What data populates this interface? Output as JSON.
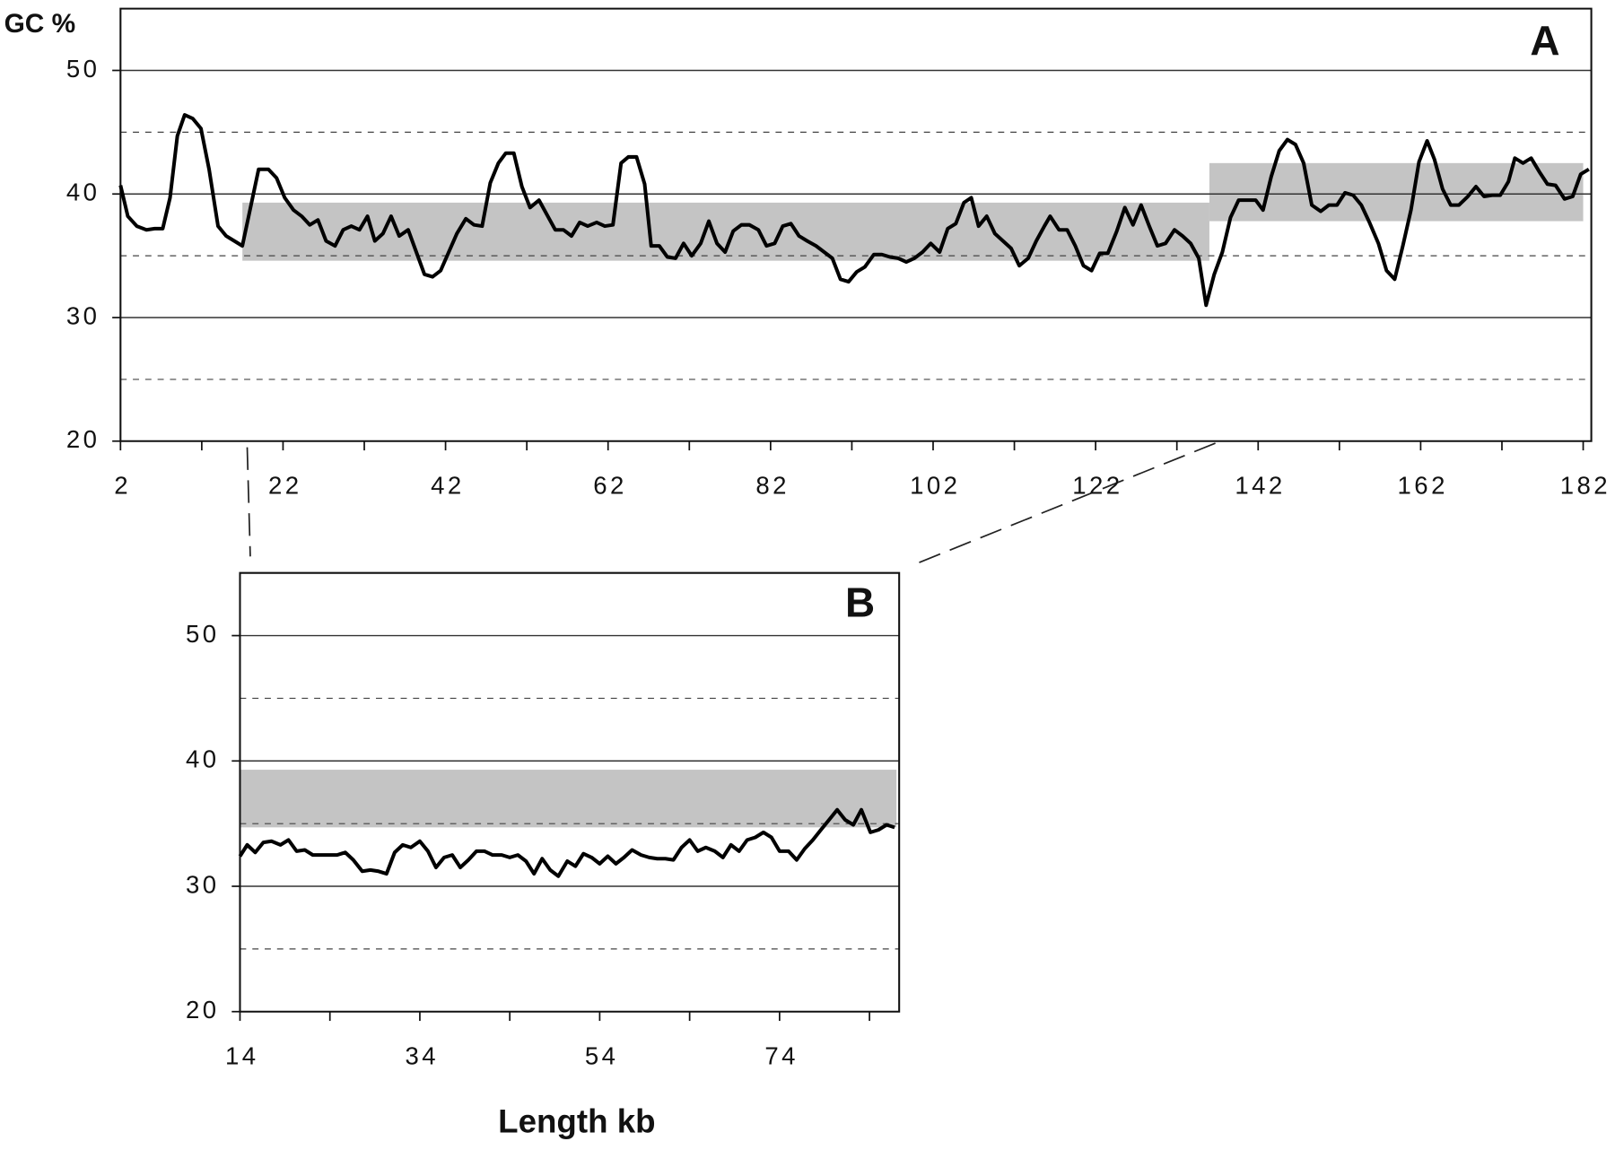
{
  "chart_data": [
    {
      "type": "line",
      "title": "A",
      "y_label": "GC %",
      "color": "#000000",
      "band_color": "#c4c4c4",
      "xlim": [
        2,
        183
      ],
      "xticks": [
        2,
        22,
        42,
        62,
        82,
        102,
        122,
        142,
        162,
        182
      ],
      "minor_xticks": [
        12,
        32,
        52,
        72,
        92,
        112,
        132,
        152,
        172
      ],
      "ylim": [
        20,
        55
      ],
      "yticks": [
        20,
        30,
        40,
        50
      ],
      "minor_grid": [
        25,
        35,
        45
      ],
      "grid": true,
      "bands": [
        {
          "x": [
            17,
            136
          ],
          "y": [
            34.6,
            39.3
          ]
        },
        {
          "x": [
            136,
            182
          ],
          "y": [
            37.8,
            42.5
          ]
        }
      ],
      "x": [
        2,
        2.9,
        4,
        5.2,
        6.2,
        7.2,
        8.1,
        9,
        9.9,
        10.9,
        11.9,
        12.9,
        14,
        15,
        16,
        17,
        18,
        19,
        20.2,
        21.2,
        22.2,
        23.3,
        24.3,
        25.3,
        26.3,
        27.3,
        28.4,
        29.4,
        30.4,
        31.4,
        32.4,
        33.3,
        34.3,
        35.3,
        36.3,
        37.4,
        38.4,
        39.4,
        40.4,
        41.4,
        42.4,
        43.4,
        44.5,
        45.5,
        46.5,
        47.5,
        48.5,
        49.4,
        50.4,
        51.4,
        52.4,
        53.5,
        54.5,
        55.5,
        56.5,
        57.5,
        58.5,
        59.5,
        60.6,
        61.6,
        62.6,
        63.6,
        64.5,
        65.5,
        66.5,
        67.3,
        68.3,
        69.3,
        70.3,
        71.3,
        72.3,
        73.4,
        74.4,
        75.4,
        76.4,
        77.4,
        78.4,
        79.4,
        80.5,
        81.5,
        82.5,
        83.5,
        84.5,
        85.5,
        86.5,
        87.6,
        88.6,
        89.6,
        90.6,
        91.6,
        92.6,
        93.6,
        94.7,
        95.7,
        96.7,
        97.7,
        98.7,
        99.7,
        100.7,
        101.7,
        102.8,
        103.8,
        104.8,
        105.8,
        106.7,
        107.6,
        108.6,
        109.6,
        110.6,
        111.6,
        112.6,
        113.7,
        114.7,
        115.7,
        116.4,
        117.5,
        118.5,
        119.5,
        120.5,
        121.5,
        122.5,
        123.5,
        124.6,
        125.6,
        126.6,
        127.6,
        128.6,
        129.6,
        130.6,
        131.7,
        132.7,
        133.7,
        134.7,
        135.6,
        136.6,
        137.6,
        138.6,
        139.6,
        140.7,
        141.7,
        142.6,
        143.6,
        144.6,
        145.6,
        146.6,
        147.6,
        148.6,
        149.7,
        150.7,
        151.7,
        152.7,
        153.7,
        154.7,
        155.7,
        156.8,
        157.8,
        158.8,
        159.8,
        160.8,
        161.8,
        162.8,
        163.7,
        164.7,
        165.7,
        166.7,
        167.8,
        168.8,
        169.8,
        170.8,
        171.8,
        172.8,
        173.6,
        174.6,
        175.6,
        176.6,
        177.6,
        178.6,
        179.7,
        180.7,
        181.7,
        182.7
      ],
      "values": [
        40.7,
        38.2,
        37.4,
        37.1,
        37.2,
        37.2,
        39.7,
        44.7,
        46.4,
        46.1,
        45.3,
        42.0,
        37.4,
        36.6,
        36.2,
        35.8,
        38.9,
        42.0,
        42.0,
        41.3,
        39.7,
        38.7,
        38.2,
        37.5,
        37.9,
        36.2,
        35.8,
        37.1,
        37.4,
        37.1,
        38.2,
        36.2,
        36.8,
        38.2,
        36.6,
        37.1,
        35.3,
        33.5,
        33.3,
        33.8,
        35.3,
        36.8,
        38.0,
        37.5,
        37.4,
        40.9,
        42.5,
        43.3,
        43.3,
        40.6,
        38.9,
        39.5,
        38.3,
        37.1,
        37.1,
        36.6,
        37.7,
        37.4,
        37.7,
        37.4,
        37.5,
        42.5,
        43.0,
        43.0,
        40.8,
        35.8,
        35.8,
        34.9,
        34.8,
        36.0,
        35.0,
        36.0,
        37.8,
        36.0,
        35.3,
        37.0,
        37.5,
        37.5,
        37.1,
        35.8,
        36.0,
        37.4,
        37.6,
        36.6,
        36.2,
        35.8,
        35.3,
        34.8,
        33.1,
        32.9,
        33.7,
        34.1,
        35.1,
        35.1,
        34.9,
        34.8,
        34.5,
        34.8,
        35.3,
        36.0,
        35.3,
        37.2,
        37.6,
        39.3,
        39.7,
        37.4,
        38.2,
        36.8,
        36.2,
        35.6,
        34.2,
        34.8,
        36.2,
        37.4,
        38.2,
        37.1,
        37.1,
        35.8,
        34.2,
        33.8,
        35.2,
        35.2,
        37.0,
        38.9,
        37.5,
        39.1,
        37.4,
        35.8,
        36.0,
        37.1,
        36.6,
        36.0,
        34.8,
        31.0,
        33.5,
        35.3,
        38.1,
        39.5,
        39.5,
        39.5,
        38.7,
        41.4,
        43.5,
        44.4,
        44.0,
        42.5,
        39.1,
        38.6,
        39.1,
        39.1,
        40.1,
        39.9,
        39.1,
        37.7,
        36.0,
        33.8,
        33.1,
        35.8,
        38.7,
        42.6,
        44.3,
        42.8,
        40.4,
        39.1,
        39.1,
        39.8,
        40.6,
        39.8,
        39.9,
        39.9,
        41.0,
        42.9,
        42.5,
        42.9,
        41.8,
        40.8,
        40.7,
        39.6,
        39.8,
        41.6,
        42.0
      ]
    },
    {
      "type": "line",
      "title": "B",
      "x_label": "Length kb",
      "color": "#000000",
      "band_color": "#c4c4c4",
      "xlim": [
        14,
        87.3
      ],
      "xticks": [
        14,
        34,
        54,
        74
      ],
      "minor_xticks": [
        24,
        44,
        64,
        84
      ],
      "ylim": [
        20,
        55
      ],
      "yticks": [
        20,
        30,
        40,
        50
      ],
      "minor_grid": [
        25,
        35,
        45
      ],
      "grid": true,
      "bands": [
        {
          "x": [
            14,
            87
          ],
          "y": [
            34.7,
            39.3
          ]
        }
      ],
      "x": [
        14,
        14.8,
        15.7,
        16.6,
        17.5,
        18.5,
        19.4,
        20.3,
        21.2,
        22.1,
        23,
        23.9,
        24.8,
        25.7,
        26.6,
        27.6,
        28.5,
        29.4,
        30.3,
        31.2,
        32.1,
        33,
        34,
        34.9,
        35.8,
        36.7,
        37.6,
        38.5,
        39.4,
        40.3,
        41.2,
        42.1,
        43.1,
        44,
        44.9,
        45.8,
        46.7,
        47.6,
        48.5,
        49.4,
        50.4,
        51.3,
        52.2,
        53.1,
        54,
        54.9,
        55.8,
        56.7,
        57.6,
        58.6,
        59.5,
        60.4,
        61.3,
        62.2,
        63.1,
        64,
        64.9,
        65.8,
        66.8,
        67.7,
        68.6,
        69.5,
        70.4,
        71.3,
        72.2,
        73.1,
        74,
        75,
        75.9,
        76.8,
        77.7,
        78.6,
        79.5,
        80.4,
        81.3,
        82.2,
        83.1,
        84.1,
        85,
        85.9,
        86.8
      ],
      "values": [
        32.4,
        33.3,
        32.7,
        33.5,
        33.6,
        33.3,
        33.7,
        32.8,
        32.9,
        32.5,
        32.5,
        32.5,
        32.5,
        32.7,
        32.1,
        31.2,
        31.3,
        31.2,
        31.0,
        32.7,
        33.3,
        33.1,
        33.6,
        32.8,
        31.5,
        32.3,
        32.5,
        31.5,
        32.1,
        32.8,
        32.8,
        32.5,
        32.5,
        32.3,
        32.5,
        32.0,
        31.0,
        32.2,
        31.3,
        30.8,
        32.0,
        31.6,
        32.6,
        32.3,
        31.8,
        32.4,
        31.8,
        32.3,
        32.9,
        32.5,
        32.3,
        32.2,
        32.2,
        32.1,
        33.1,
        33.7,
        32.8,
        33.1,
        32.8,
        32.3,
        33.3,
        32.8,
        33.7,
        33.9,
        34.3,
        33.9,
        32.8,
        32.8,
        32.1,
        33.0,
        33.7,
        34.5,
        35.3,
        36.1,
        35.3,
        34.9,
        36.1,
        34.3,
        34.5,
        34.9,
        34.7
      ]
    }
  ]
}
